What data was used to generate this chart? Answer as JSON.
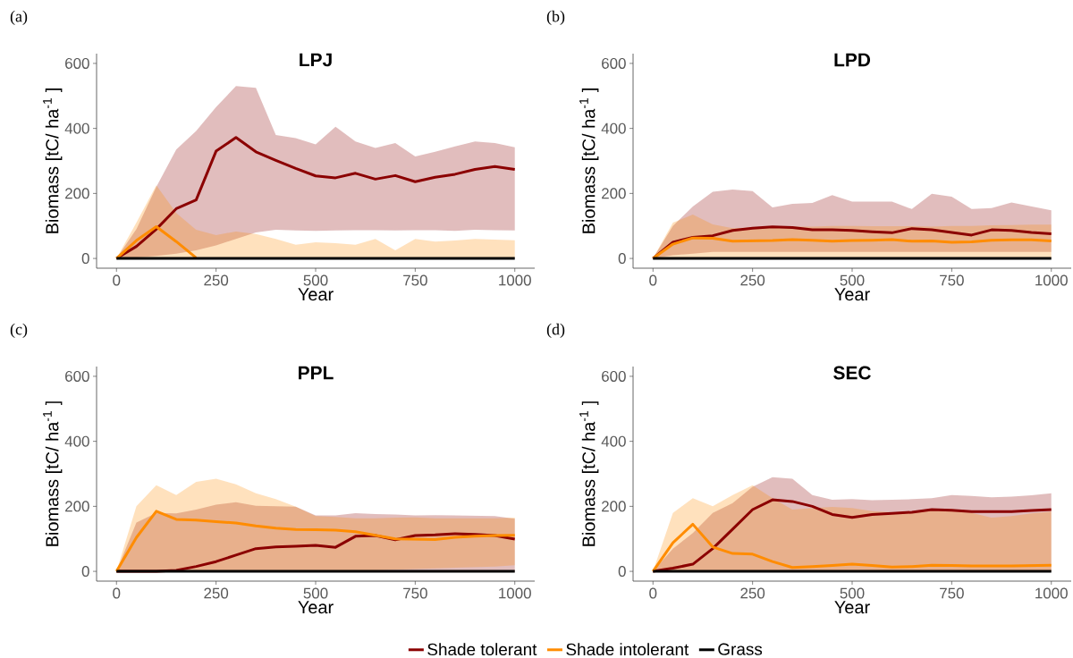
{
  "chart_data": [
    {
      "type": "line",
      "title": "LPJ",
      "xlabel": "Year",
      "ylabel": "Biomass [tC/ ha$^{-1}$ ]",
      "annotations": [
        "(a)"
      ],
      "xlim": [
        -50,
        1050
      ],
      "ylim": [
        -30,
        630
      ],
      "xticks": [
        0,
        250,
        500,
        750,
        1000
      ],
      "yticks": [
        0,
        200,
        400,
        600
      ],
      "grid": false,
      "x": [
        0,
        50,
        100,
        150,
        200,
        250,
        300,
        350,
        400,
        450,
        500,
        550,
        600,
        650,
        700,
        750,
        800,
        850,
        900,
        950,
        1000
      ],
      "series": [
        {
          "color": "#8b0000",
          "values": [
            0,
            37,
            90,
            153,
            180,
            330,
            372,
            328,
            302,
            277,
            254,
            248,
            262,
            244,
            255,
            236,
            250,
            259,
            274,
            283,
            274
          ],
          "lower": [
            0,
            3,
            8,
            15,
            25,
            40,
            60,
            80,
            88,
            86,
            85,
            86,
            87,
            87,
            86,
            87,
            87,
            85,
            88,
            87,
            86
          ],
          "upper": [
            0,
            90,
            220,
            335,
            392,
            466,
            530,
            525,
            380,
            370,
            351,
            405,
            360,
            340,
            355,
            314,
            328,
            345,
            360,
            355,
            342
          ]
        },
        {
          "color": "#ff8c00",
          "values": [
            0,
            55,
            98,
            52,
            2,
            null,
            null,
            null,
            null,
            null,
            null,
            null,
            null,
            null,
            null,
            null,
            null,
            null,
            null,
            null,
            null
          ],
          "lower": [
            0,
            0,
            0,
            0,
            0,
            0,
            0,
            0,
            0,
            0,
            0,
            0,
            0,
            0,
            0,
            0,
            0,
            0,
            0,
            0,
            0
          ],
          "upper": [
            0,
            110,
            225,
            140,
            88,
            72,
            83,
            75,
            60,
            42,
            50,
            47,
            42,
            60,
            25,
            60,
            52,
            55,
            60,
            58,
            56
          ]
        },
        {
          "color": "#000000",
          "values": [
            0,
            0,
            0,
            0,
            0,
            0,
            0,
            0,
            0,
            0,
            0,
            0,
            0,
            0,
            0,
            0,
            0,
            0,
            0,
            0,
            0
          ]
        }
      ]
    },
    {
      "type": "line",
      "title": "LPD",
      "xlabel": "Year",
      "ylabel": "Biomass [tC/ ha$^{-1}$ ]",
      "annotations": [
        "(b)"
      ],
      "xlim": [
        -50,
        1050
      ],
      "ylim": [
        -30,
        630
      ],
      "xticks": [
        0,
        250,
        500,
        750,
        1000
      ],
      "yticks": [
        0,
        200,
        400,
        600
      ],
      "grid": false,
      "x": [
        0,
        50,
        100,
        150,
        200,
        250,
        300,
        350,
        400,
        450,
        500,
        550,
        600,
        650,
        700,
        750,
        800,
        850,
        900,
        950,
        1000
      ],
      "series": [
        {
          "color": "#8b0000",
          "values": [
            0,
            50,
            65,
            70,
            86,
            93,
            97,
            95,
            88,
            88,
            86,
            82,
            79,
            92,
            88,
            80,
            72,
            88,
            86,
            80,
            76
          ],
          "lower": [
            0,
            10,
            15,
            20,
            20,
            20,
            20,
            20,
            20,
            20,
            20,
            20,
            20,
            20,
            20,
            20,
            20,
            20,
            20,
            20,
            20
          ],
          "upper": [
            0,
            100,
            160,
            205,
            212,
            207,
            157,
            168,
            171,
            195,
            175,
            175,
            175,
            152,
            199,
            190,
            152,
            155,
            172,
            160,
            148
          ]
        },
        {
          "color": "#ff8c00",
          "values": [
            0,
            44,
            63,
            62,
            53,
            54,
            55,
            58,
            56,
            53,
            55,
            56,
            58,
            53,
            54,
            50,
            51,
            56,
            57,
            57,
            54
          ],
          "lower": [
            0,
            0,
            0,
            0,
            0,
            0,
            0,
            0,
            0,
            0,
            0,
            0,
            0,
            0,
            0,
            0,
            0,
            0,
            0,
            0,
            0
          ],
          "upper": [
            0,
            110,
            135,
            105,
            93,
            95,
            97,
            98,
            98,
            100,
            100,
            99,
            99,
            99,
            98,
            100,
            100,
            102,
            103,
            104,
            104
          ]
        },
        {
          "color": "#000000",
          "values": [
            0,
            0,
            0,
            0,
            0,
            0,
            0,
            0,
            0,
            0,
            0,
            0,
            0,
            0,
            0,
            0,
            0,
            0,
            0,
            0,
            0
          ]
        }
      ]
    },
    {
      "type": "line",
      "title": "PPL",
      "xlabel": "Year",
      "ylabel": "Biomass [tC/ ha$^{-1}$ ]",
      "annotations": [
        "(c)"
      ],
      "xlim": [
        -50,
        1050
      ],
      "ylim": [
        -30,
        630
      ],
      "xticks": [
        0,
        250,
        500,
        750,
        1000
      ],
      "yticks": [
        0,
        200,
        400,
        600
      ],
      "grid": false,
      "x": [
        0,
        50,
        100,
        150,
        200,
        250,
        300,
        350,
        400,
        450,
        500,
        550,
        600,
        650,
        700,
        750,
        800,
        850,
        900,
        950,
        1000
      ],
      "series": [
        {
          "color": "#8b0000",
          "values": [
            0,
            0,
            0,
            3,
            15,
            30,
            50,
            70,
            75,
            77,
            80,
            74,
            108,
            110,
            97,
            110,
            112,
            116,
            114,
            110,
            99
          ],
          "lower": [
            0,
            0,
            0,
            0,
            0,
            0,
            0,
            0,
            0,
            0,
            0,
            0,
            0,
            0,
            0,
            0,
            0,
            0,
            0,
            0,
            0
          ],
          "upper": [
            0,
            150,
            180,
            178,
            190,
            205,
            213,
            202,
            200,
            199,
            172,
            172,
            179,
            176,
            175,
            172,
            173,
            172,
            171,
            170,
            162
          ]
        },
        {
          "color": "#ff8c00",
          "values": [
            0,
            104,
            185,
            160,
            158,
            153,
            149,
            140,
            133,
            129,
            128,
            127,
            122,
            111,
            100,
            99,
            98,
            105,
            108,
            110,
            111
          ],
          "lower": [
            0,
            0,
            0,
            0,
            0,
            0,
            0,
            0,
            0,
            0,
            0,
            0,
            0,
            3,
            5,
            7,
            9,
            11,
            13,
            15,
            19
          ],
          "upper": [
            0,
            200,
            265,
            235,
            275,
            285,
            268,
            240,
            222,
            199,
            170,
            167,
            163,
            163,
            165,
            166,
            163,
            163,
            163,
            163,
            165
          ]
        },
        {
          "color": "#000000",
          "values": [
            0,
            0,
            0,
            0,
            0,
            0,
            0,
            0,
            0,
            0,
            0,
            0,
            0,
            0,
            0,
            0,
            0,
            0,
            0,
            0,
            0
          ]
        }
      ]
    },
    {
      "type": "line",
      "title": "SEC",
      "xlabel": "Year",
      "ylabel": "Biomass [tC/ ha$^{-1}$ ]",
      "annotations": [
        "(d)"
      ],
      "xlim": [
        -50,
        1050
      ],
      "ylim": [
        -30,
        630
      ],
      "xticks": [
        0,
        250,
        500,
        750,
        1000
      ],
      "yticks": [
        0,
        200,
        400,
        600
      ],
      "grid": false,
      "legend": "bottom",
      "x": [
        0,
        50,
        100,
        150,
        200,
        250,
        300,
        350,
        400,
        450,
        500,
        550,
        600,
        650,
        700,
        750,
        800,
        850,
        900,
        950,
        1000
      ],
      "series": [
        {
          "name": "Shade tolerant",
          "color": "#8b0000",
          "values": [
            0,
            10,
            22,
            70,
            130,
            190,
            220,
            215,
            200,
            175,
            166,
            175,
            178,
            182,
            190,
            188,
            184,
            184,
            184,
            187,
            190
          ],
          "lower": [
            0,
            0,
            0,
            0,
            0,
            0,
            0,
            0,
            0,
            0,
            0,
            0,
            0,
            0,
            0,
            0,
            0,
            0,
            0,
            0,
            0
          ],
          "upper": [
            0,
            70,
            118,
            180,
            210,
            260,
            290,
            285,
            235,
            220,
            222,
            219,
            220,
            222,
            225,
            235,
            232,
            228,
            230,
            234,
            240
          ]
        },
        {
          "name": "Shade intolerant",
          "color": "#ff8c00",
          "values": [
            0,
            88,
            145,
            75,
            55,
            53,
            30,
            12,
            15,
            18,
            22,
            18,
            13,
            15,
            19,
            18,
            17,
            17,
            17,
            18,
            19
          ],
          "lower": [
            0,
            0,
            0,
            0,
            0,
            0,
            0,
            0,
            0,
            0,
            0,
            0,
            0,
            0,
            0,
            0,
            0,
            0,
            0,
            0,
            0
          ],
          "upper": [
            0,
            180,
            225,
            200,
            235,
            265,
            225,
            190,
            195,
            198,
            195,
            185,
            182,
            180,
            188,
            192,
            180,
            165,
            170,
            178,
            184
          ]
        },
        {
          "name": "Grass",
          "color": "#000000",
          "values": [
            0,
            0,
            0,
            0,
            0,
            0,
            0,
            0,
            0,
            0,
            0,
            0,
            0,
            0,
            0,
            0,
            0,
            0,
            0,
            0,
            0
          ]
        }
      ]
    }
  ]
}
